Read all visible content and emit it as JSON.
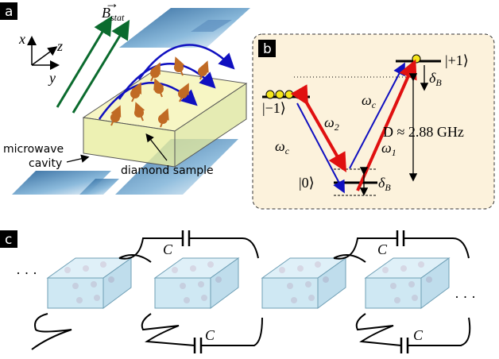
{
  "panel_a": {
    "label": "a",
    "field": {
      "symbol": "B",
      "subscript": "stat"
    },
    "axes": {
      "x": "x",
      "y": "y",
      "z": "z"
    },
    "cavity_label": [
      "microwave",
      "cavity"
    ],
    "sample_label": "diamond sample"
  },
  "panel_b": {
    "label": "b",
    "levels": {
      "plus": "|+1⟩",
      "minus": "|−1⟩",
      "zero": "|0⟩"
    },
    "shift": {
      "symbol": "δ",
      "subscript": "B"
    },
    "omega_c": {
      "symbol": "ω",
      "subscript": "c"
    },
    "omega_1": {
      "symbol": "ω",
      "subscript": "1"
    },
    "omega_2": {
      "symbol": "ω",
      "subscript": "2"
    },
    "splitting": "D ≈ 2.88 GHz"
  },
  "panel_c": {
    "label": "c",
    "capacitor": "C",
    "ellipsis": "· · ·"
  }
}
